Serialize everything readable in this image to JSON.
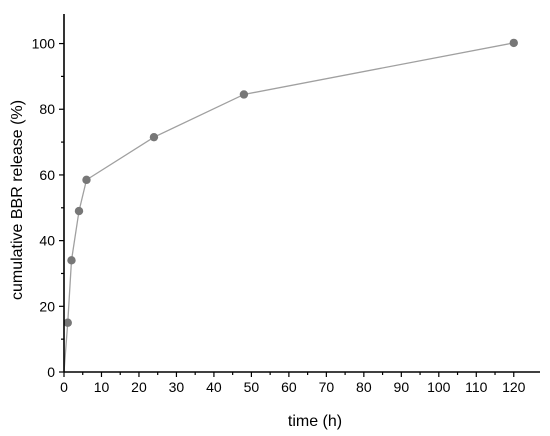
{
  "chart_data": {
    "type": "line",
    "title": "",
    "xlabel": "time (h)",
    "ylabel": "cumulative BBR release (%)",
    "xlim": [
      0,
      127
    ],
    "ylim": [
      0,
      109
    ],
    "xticks": [
      0,
      10,
      20,
      30,
      40,
      50,
      60,
      70,
      80,
      90,
      100,
      110,
      120
    ],
    "yticks": [
      0,
      20,
      40,
      60,
      80,
      100
    ],
    "grid": false,
    "legend": "none",
    "colors": {
      "line": "#a0a0a0",
      "marker": "#777777",
      "axis": "#000000"
    },
    "series": [
      {
        "x": [
          0,
          1,
          2,
          4,
          6,
          24,
          48,
          120
        ],
        "y": [
          0,
          15,
          34,
          49,
          58.5,
          71.5,
          84.5,
          100.2
        ]
      }
    ]
  }
}
